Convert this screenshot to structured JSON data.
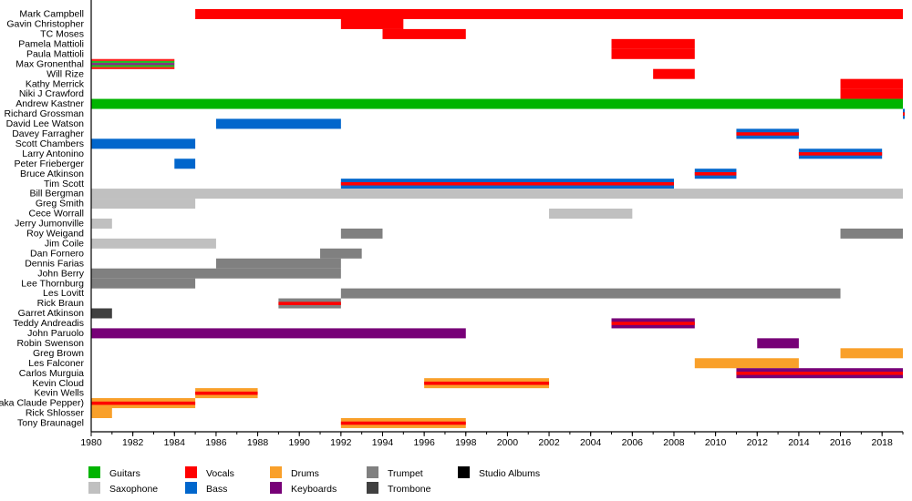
{
  "chart_data": {
    "type": "timeline",
    "xlim": [
      1980,
      2019
    ],
    "x_ticks": [
      1980,
      1982,
      1984,
      1986,
      1988,
      1990,
      1992,
      1994,
      1996,
      1998,
      2000,
      2002,
      2004,
      2006,
      2008,
      2010,
      2012,
      2014,
      2016,
      2018
    ],
    "roles": {
      "guitars": {
        "label": "Guitars",
        "color": "#00b400"
      },
      "vocals": {
        "label": "Vocals",
        "color": "#ff0000"
      },
      "drums": {
        "label": "Drums",
        "color": "#f9a02a"
      },
      "trumpet": {
        "label": "Trumpet",
        "color": "#808080"
      },
      "albums": {
        "label": "Studio Albums",
        "color": "#000000"
      },
      "saxophone": {
        "label": "Saxophone",
        "color": "#c0c0c0"
      },
      "bass": {
        "label": "Bass",
        "color": "#0066cc"
      },
      "keyboards": {
        "label": "Keyboards",
        "color": "#770077"
      },
      "trombone": {
        "label": "Trombone",
        "color": "#404040"
      }
    },
    "legend_order": [
      [
        "guitars",
        "vocals",
        "drums",
        "trumpet",
        "albums"
      ],
      [
        "saxophone",
        "bass",
        "keyboards",
        "trombone"
      ]
    ],
    "legend_placement": "bottom",
    "members": [
      {
        "name": "Mark Campbell",
        "periods": [
          {
            "start": 1985,
            "end": 2019,
            "roles": [
              "vocals"
            ]
          }
        ]
      },
      {
        "name": "Gavin Christopher",
        "periods": [
          {
            "start": 1992,
            "end": 1995,
            "roles": [
              "vocals"
            ]
          }
        ]
      },
      {
        "name": "TC Moses",
        "periods": [
          {
            "start": 1994,
            "end": 1998,
            "roles": [
              "vocals"
            ]
          }
        ]
      },
      {
        "name": "Pamela Mattioli",
        "periods": [
          {
            "start": 2005,
            "end": 2009,
            "roles": [
              "vocals"
            ]
          }
        ]
      },
      {
        "name": "Paula Mattioli",
        "periods": [
          {
            "start": 2005,
            "end": 2009,
            "roles": [
              "vocals"
            ]
          }
        ]
      },
      {
        "name": "Max Gronenthal",
        "periods": [
          {
            "start": 1980,
            "end": 1984,
            "roles": [
              "vocals",
              "guitars",
              "keyboards"
            ]
          }
        ]
      },
      {
        "name": "Will Rize",
        "periods": [
          {
            "start": 2007,
            "end": 2009,
            "roles": [
              "vocals"
            ]
          }
        ]
      },
      {
        "name": "Kathy Merrick",
        "periods": [
          {
            "start": 2016,
            "end": 2019,
            "roles": [
              "vocals"
            ]
          }
        ]
      },
      {
        "name": "Niki J Crawford",
        "periods": [
          {
            "start": 2016,
            "end": 2019,
            "roles": [
              "vocals"
            ]
          }
        ]
      },
      {
        "name": "Andrew Kastner",
        "periods": [
          {
            "start": 1980,
            "end": 2019,
            "roles": [
              "guitars"
            ]
          }
        ]
      },
      {
        "name": "Richard Grossman",
        "periods": [
          {
            "start": 2019,
            "end": 2019,
            "roles": [
              "bass",
              "vocals"
            ]
          }
        ]
      },
      {
        "name": "David Lee Watson",
        "periods": [
          {
            "start": 1986,
            "end": 1992,
            "roles": [
              "bass"
            ]
          }
        ]
      },
      {
        "name": "Davey Farragher",
        "periods": [
          {
            "start": 2011,
            "end": 2014,
            "roles": [
              "bass",
              "vocals"
            ]
          }
        ]
      },
      {
        "name": "Scott Chambers",
        "periods": [
          {
            "start": 1980,
            "end": 1985,
            "roles": [
              "bass"
            ]
          }
        ]
      },
      {
        "name": "Larry Antonino",
        "periods": [
          {
            "start": 2014,
            "end": 2018,
            "roles": [
              "bass",
              "vocals"
            ]
          }
        ]
      },
      {
        "name": "Peter Frieberger",
        "periods": [
          {
            "start": 1984,
            "end": 1985,
            "roles": [
              "bass"
            ]
          }
        ]
      },
      {
        "name": "Bruce Atkinson",
        "periods": [
          {
            "start": 2009,
            "end": 2011,
            "roles": [
              "bass",
              "vocals"
            ]
          }
        ]
      },
      {
        "name": "Tim Scott",
        "periods": [
          {
            "start": 1992,
            "end": 2008,
            "roles": [
              "bass",
              "vocals"
            ]
          }
        ]
      },
      {
        "name": "Bill Bergman",
        "periods": [
          {
            "start": 1980,
            "end": 2019,
            "roles": [
              "saxophone"
            ]
          }
        ]
      },
      {
        "name": "Greg Smith",
        "periods": [
          {
            "start": 1980,
            "end": 1985,
            "roles": [
              "saxophone"
            ]
          }
        ]
      },
      {
        "name": "Cece Worrall",
        "periods": [
          {
            "start": 2002,
            "end": 2006,
            "roles": [
              "saxophone"
            ]
          }
        ]
      },
      {
        "name": "Jerry Jumonville",
        "periods": [
          {
            "start": 1980,
            "end": 1981,
            "roles": [
              "saxophone"
            ]
          }
        ]
      },
      {
        "name": "Roy Weigand",
        "periods": [
          {
            "start": 1992,
            "end": 1994,
            "roles": [
              "trumpet"
            ]
          },
          {
            "start": 2016,
            "end": 2019,
            "roles": [
              "trumpet"
            ]
          }
        ]
      },
      {
        "name": "Jim Coile",
        "periods": [
          {
            "start": 1980,
            "end": 1986,
            "roles": [
              "saxophone"
            ]
          }
        ]
      },
      {
        "name": "Dan Fornero",
        "periods": [
          {
            "start": 1991,
            "end": 1993,
            "roles": [
              "trumpet"
            ]
          }
        ]
      },
      {
        "name": "Dennis Farias",
        "periods": [
          {
            "start": 1986,
            "end": 1992,
            "roles": [
              "trumpet"
            ]
          }
        ]
      },
      {
        "name": "John Berry",
        "periods": [
          {
            "start": 1980,
            "end": 1992,
            "roles": [
              "trumpet"
            ]
          }
        ]
      },
      {
        "name": "Lee Thornburg",
        "periods": [
          {
            "start": 1980,
            "end": 1985,
            "roles": [
              "trumpet"
            ]
          }
        ]
      },
      {
        "name": "Les Lovitt",
        "periods": [
          {
            "start": 1992,
            "end": 2016,
            "roles": [
              "trumpet"
            ]
          }
        ]
      },
      {
        "name": "Rick Braun",
        "periods": [
          {
            "start": 1989,
            "end": 1992,
            "roles": [
              "trumpet",
              "vocals"
            ]
          }
        ]
      },
      {
        "name": "Garret Atkinson",
        "periods": [
          {
            "start": 1980,
            "end": 1981,
            "roles": [
              "trombone"
            ]
          }
        ]
      },
      {
        "name": "Teddy Andreadis",
        "periods": [
          {
            "start": 2005,
            "end": 2009,
            "roles": [
              "keyboards",
              "vocals"
            ]
          }
        ]
      },
      {
        "name": "John Paruolo",
        "periods": [
          {
            "start": 1980,
            "end": 1998,
            "roles": [
              "keyboards"
            ]
          }
        ]
      },
      {
        "name": "Robin Swenson",
        "periods": [
          {
            "start": 2012,
            "end": 2014,
            "roles": [
              "keyboards"
            ]
          }
        ]
      },
      {
        "name": "Greg Brown",
        "periods": [
          {
            "start": 2016,
            "end": 2019,
            "roles": [
              "drums"
            ]
          }
        ]
      },
      {
        "name": "Les Falconer",
        "periods": [
          {
            "start": 2009,
            "end": 2014,
            "roles": [
              "drums"
            ]
          }
        ]
      },
      {
        "name": "Carlos Murguia",
        "periods": [
          {
            "start": 2011,
            "end": 2019,
            "roles": [
              "keyboards",
              "vocals"
            ]
          }
        ]
      },
      {
        "name": "Kevin Cloud",
        "periods": [
          {
            "start": 1996,
            "end": 2002,
            "roles": [
              "drums",
              "vocals"
            ]
          }
        ]
      },
      {
        "name": "Kevin Wells",
        "periods": [
          {
            "start": 1985,
            "end": 1988,
            "roles": [
              "drums",
              "vocals"
            ]
          }
        ]
      },
      {
        "name": "aka Claude Pepper)",
        "periods": [
          {
            "start": 1980,
            "end": 1985,
            "roles": [
              "drums",
              "vocals"
            ]
          }
        ]
      },
      {
        "name": "Rick Shlosser",
        "periods": [
          {
            "start": 1980,
            "end": 1981,
            "roles": [
              "drums"
            ]
          }
        ]
      },
      {
        "name": "Tony Braunagel",
        "periods": [
          {
            "start": 1992,
            "end": 1998,
            "roles": [
              "drums",
              "vocals"
            ]
          }
        ]
      }
    ]
  }
}
